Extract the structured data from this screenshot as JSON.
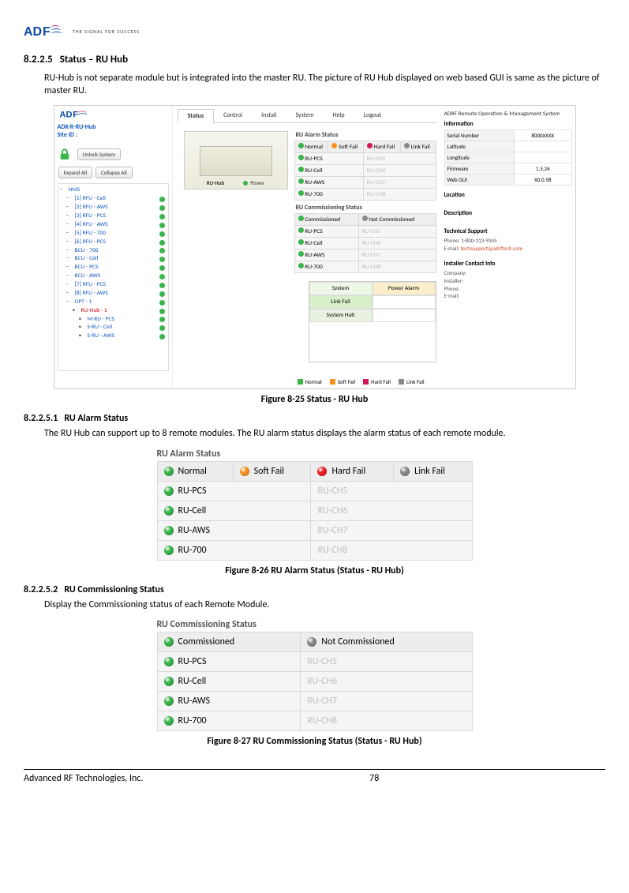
{
  "brand": {
    "name1": "AD",
    "name2": "F",
    "tagline": "THE SIGNAL FOR SUCCESS"
  },
  "sections": {
    "s1_num": "8.2.2.5",
    "s1_title": "Status – RU Hub",
    "s1_body": "RU-Hub is not separate module but is integrated into the master RU.  The picture of RU Hub displayed on web based GUI is same as the picture of master RU.",
    "fig25": "Figure 8-25    Status - RU Hub",
    "s2_num": "8.2.2.5.1",
    "s2_title": "RU Alarm Status",
    "s2_body": "The RU Hub can support up to 8 remote modules. The RU alarm status displays the alarm status of each remote module.",
    "fig26": "Figure 8-26    RU Alarm Status (Status - RU Hub)",
    "s3_num": "8.2.2.5.2",
    "s3_title": "RU Commissioning Status",
    "s3_body": "Display the Commissioning status of each Remote Module.",
    "fig27": "Figure 8-27    RU Commissioning Status (Status - RU Hub)"
  },
  "shot": {
    "nav": {
      "status": "Status",
      "control": "Control",
      "install": "Install",
      "system": "System",
      "help": "Help",
      "logout": "Logout"
    },
    "left": {
      "model": "ADX-R-RU-Hub",
      "site": "Site ID :",
      "unlock": "Unlock System",
      "expand": "Expand All",
      "collapse": "Collapse All",
      "tree": [
        {
          "lbl": "NMS",
          "ind": 0
        },
        {
          "lbl": "[1] RFU - Cell",
          "dot": "green",
          "ind": 1
        },
        {
          "lbl": "[2] RFU - AWS",
          "dot": "green",
          "ind": 1
        },
        {
          "lbl": "[3] RFU - PCS",
          "dot": "green",
          "ind": 1
        },
        {
          "lbl": "[4] RFU - AWS",
          "dot": "green",
          "ind": 1
        },
        {
          "lbl": "[5] RFU - 700",
          "dot": "green",
          "ind": 1
        },
        {
          "lbl": "[6] RFU - PCS",
          "dot": "green",
          "ind": 1
        },
        {
          "lbl": "BCU - 700",
          "dot": "green",
          "ind": 1
        },
        {
          "lbl": "BCU - Cell",
          "dot": "green",
          "ind": 1
        },
        {
          "lbl": "BCU - PCS",
          "dot": "green",
          "ind": 1
        },
        {
          "lbl": "BCU - AWS",
          "dot": "green",
          "ind": 1
        },
        {
          "lbl": "[7] RFU - PCS",
          "dot": "green",
          "ind": 1
        },
        {
          "lbl": "[8] RFU - AWS",
          "dot": "green",
          "ind": 1
        },
        {
          "lbl": "OPT - 1",
          "dot": "green",
          "ind": 1
        },
        {
          "lbl": "RU-Hub - 1",
          "dot": "green",
          "ind": 2,
          "red": true
        },
        {
          "lbl": "M-RU - PCS",
          "dot": "green",
          "ind": 3
        },
        {
          "lbl": "S-RU - Cell",
          "dot": "green",
          "ind": 3
        },
        {
          "lbl": "S-RU - AWS",
          "dot": "green",
          "ind": 3
        }
      ]
    },
    "ruhub_label": "RU-Hub",
    "power": "Power",
    "alarm_title": "RU Alarm Status",
    "alarm_legend": {
      "normal": "Normal",
      "soft": "Soft Fail",
      "hard": "Hard Fail",
      "link": "Link Fail"
    },
    "comm_title": "RU Commissioning Status",
    "comm_legend": {
      "c": "Commissioned",
      "nc": "Not Commissioned"
    },
    "rows_left": [
      "RU-PCS",
      "RU-Cell",
      "RU-AWS",
      "RU-700"
    ],
    "rows_right": [
      "RU-CH5",
      "RU-CH6",
      "RU-CH7",
      "RU-CH8"
    ],
    "halt": {
      "sys": "System",
      "pwr": "Power Alarm",
      "lf": "Link Fail",
      "sh": "System Halt"
    },
    "bottom_legend": {
      "n": "Normal",
      "s": "Soft Fail",
      "h": "Hard Fail",
      "l": "Link Fail"
    },
    "right": {
      "title": "ADRF Remote Operation & Management System",
      "info": "Information",
      "rows": [
        [
          "Serial Number",
          "8000XXXX"
        ],
        [
          "Latitude",
          ""
        ],
        [
          "Longitude",
          ""
        ],
        [
          "Firmware",
          "1.5.24"
        ],
        [
          "Web GUI",
          "X0.0.58"
        ]
      ],
      "loc": "Location",
      "desc": "Description",
      "tech_h": "Technical Support",
      "tech1": "Phone: 1-800-313-9345",
      "tech2_a": "E-mail: ",
      "tech2_b": "techsupport@adrftech.com",
      "inst_h": "Installer Contact Info",
      "inst1": "Company:",
      "inst2": "Installer:",
      "inst3": "Phone:",
      "inst4": "E-mail:"
    }
  },
  "alarm_table": {
    "title": "RU Alarm Status",
    "legend": [
      {
        "led": "green",
        "txt": "Normal"
      },
      {
        "led": "orange",
        "txt": "Soft Fail"
      },
      {
        "led": "red",
        "txt": "Hard Fail"
      },
      {
        "led": "gray",
        "txt": "Link Fail"
      }
    ],
    "rows": [
      {
        "led": "green",
        "l": "RU-PCS",
        "r": "RU-CH5"
      },
      {
        "led": "green",
        "l": "RU-Cell",
        "r": "RU-CH6"
      },
      {
        "led": "green",
        "l": "RU-AWS",
        "r": "RU-CH7"
      },
      {
        "led": "green",
        "l": "RU-700",
        "r": "RU-CH8"
      }
    ]
  },
  "comm_table": {
    "title": "RU Commissioning Status",
    "legend": [
      {
        "led": "green",
        "txt": "Commissioned"
      },
      {
        "led": "gray",
        "txt": "Not Commissioned"
      }
    ],
    "rows": [
      {
        "led": "green",
        "l": "RU-PCS",
        "r": "RU-CH5"
      },
      {
        "led": "green",
        "l": "RU-Cell",
        "r": "RU-CH6"
      },
      {
        "led": "green",
        "l": "RU-AWS",
        "r": "RU-CH7"
      },
      {
        "led": "green",
        "l": "RU-700",
        "r": "RU-CH8"
      }
    ]
  },
  "footer": {
    "company": "Advanced RF Technologies, Inc.",
    "page": "78"
  }
}
